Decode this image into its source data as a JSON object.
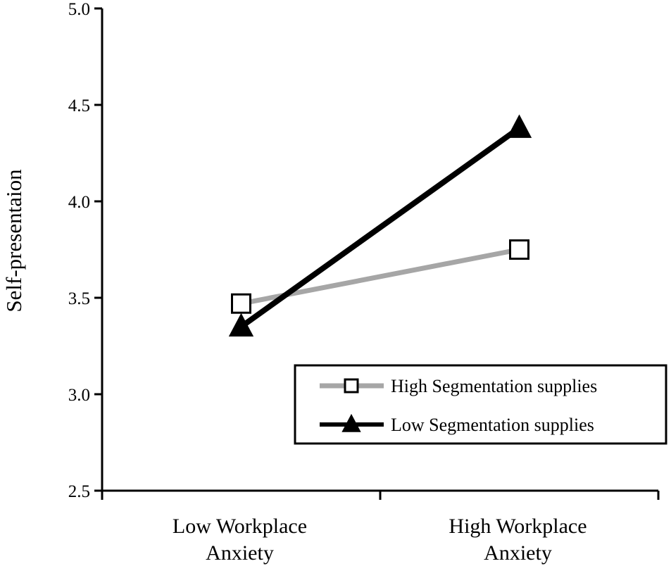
{
  "chart_data": {
    "type": "line",
    "title": "",
    "xlabel": "",
    "ylabel": "Self-presentaion",
    "ylim": [
      2.5,
      5.0
    ],
    "yticks": [
      "2.5",
      "3.0",
      "3.5",
      "4.0",
      "4.5",
      "5.0"
    ],
    "categories": [
      [
        "Low Workplace",
        "Anxiety"
      ],
      [
        "High Workplace",
        "Anxiety"
      ]
    ],
    "grid": false,
    "legend_position": "bottom-right",
    "series": [
      {
        "name": "High Segmentation supplies",
        "values": [
          3.47,
          3.75
        ],
        "color": "#a6a6a6",
        "marker": "square",
        "marker_fill": "#ffffff"
      },
      {
        "name": "Low Segmentation supplies",
        "values": [
          3.35,
          4.38
        ],
        "color": "#000000",
        "marker": "triangle",
        "marker_fill": "#000000"
      }
    ]
  }
}
